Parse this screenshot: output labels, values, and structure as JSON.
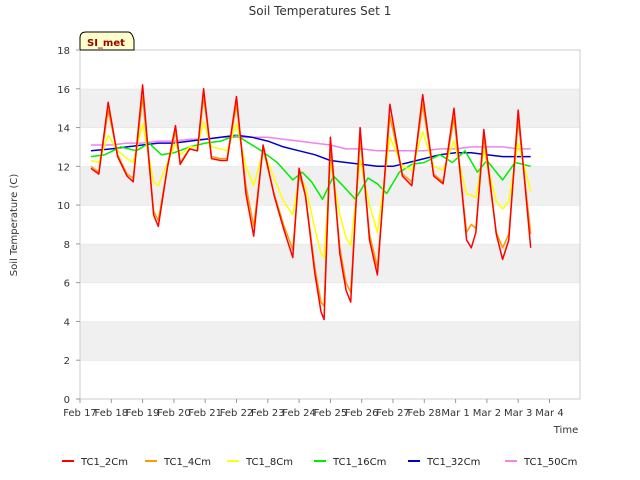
{
  "chart_data": {
    "type": "line",
    "title": "Soil Temperatures Set 1",
    "xlabel": "Time",
    "ylabel": "Soil Temperature (C)",
    "badge": "SI_met",
    "ylim": [
      0,
      18
    ],
    "yticks": [
      0,
      2,
      4,
      6,
      8,
      10,
      12,
      14,
      16,
      18
    ],
    "xlim": [
      0,
      16
    ],
    "xticks": [
      {
        "x": 0,
        "label": "Feb 17"
      },
      {
        "x": 1,
        "label": "Feb 18"
      },
      {
        "x": 2,
        "label": "Feb 19"
      },
      {
        "x": 3,
        "label": "Feb 20"
      },
      {
        "x": 4,
        "label": "Feb 21"
      },
      {
        "x": 5,
        "label": "Feb 22"
      },
      {
        "x": 6,
        "label": "Feb 23"
      },
      {
        "x": 7,
        "label": "Feb 24"
      },
      {
        "x": 8,
        "label": "Feb 25"
      },
      {
        "x": 9,
        "label": "Feb 26"
      },
      {
        "x": 10,
        "label": "Feb 27"
      },
      {
        "x": 11,
        "label": "Feb 28"
      },
      {
        "x": 12,
        "label": "Mar 1"
      },
      {
        "x": 13,
        "label": "Mar 2"
      },
      {
        "x": 14,
        "label": "Mar 3"
      },
      {
        "x": 15,
        "label": "Mar 4"
      }
    ],
    "grid": "horizontal bands",
    "legend_position": "bottom",
    "series": [
      {
        "name": "TC1_2Cm",
        "color": "#ff0000",
        "points": [
          [
            0.35,
            11.9
          ],
          [
            0.6,
            11.6
          ],
          [
            0.9,
            15.3
          ],
          [
            1.2,
            12.5
          ],
          [
            1.5,
            11.5
          ],
          [
            1.7,
            11.2
          ],
          [
            2.0,
            16.2
          ],
          [
            2.35,
            9.5
          ],
          [
            2.5,
            8.9
          ],
          [
            2.8,
            12.0
          ],
          [
            3.05,
            14.1
          ],
          [
            3.2,
            12.1
          ],
          [
            3.5,
            12.9
          ],
          [
            3.75,
            12.8
          ],
          [
            3.95,
            16.0
          ],
          [
            4.2,
            12.4
          ],
          [
            4.5,
            12.3
          ],
          [
            4.7,
            12.3
          ],
          [
            5.0,
            15.6
          ],
          [
            5.3,
            10.6
          ],
          [
            5.55,
            8.4
          ],
          [
            5.85,
            13.1
          ],
          [
            6.2,
            10.5
          ],
          [
            6.5,
            8.8
          ],
          [
            6.8,
            7.3
          ],
          [
            7.0,
            11.9
          ],
          [
            7.2,
            10.5
          ],
          [
            7.5,
            6.5
          ],
          [
            7.7,
            4.5
          ],
          [
            7.8,
            4.1
          ],
          [
            8.0,
            13.5
          ],
          [
            8.3,
            7.5
          ],
          [
            8.5,
            5.6
          ],
          [
            8.65,
            5.0
          ],
          [
            8.95,
            14.0
          ],
          [
            9.25,
            8.2
          ],
          [
            9.5,
            6.4
          ],
          [
            9.9,
            15.2
          ],
          [
            10.3,
            11.5
          ],
          [
            10.6,
            11.0
          ],
          [
            10.95,
            15.7
          ],
          [
            11.3,
            11.5
          ],
          [
            11.6,
            11.1
          ],
          [
            11.95,
            15.0
          ],
          [
            12.35,
            8.2
          ],
          [
            12.5,
            7.8
          ],
          [
            12.65,
            8.6
          ],
          [
            12.9,
            13.9
          ],
          [
            13.3,
            8.5
          ],
          [
            13.5,
            7.2
          ],
          [
            13.7,
            8.2
          ],
          [
            14.0,
            14.9
          ],
          [
            14.4,
            7.8
          ]
        ]
      },
      {
        "name": "TC1_4Cm",
        "color": "#ff9900",
        "points": [
          [
            0.35,
            12.0
          ],
          [
            0.6,
            11.7
          ],
          [
            0.9,
            14.9
          ],
          [
            1.2,
            12.6
          ],
          [
            1.5,
            11.6
          ],
          [
            1.7,
            11.4
          ],
          [
            2.0,
            15.6
          ],
          [
            2.35,
            9.7
          ],
          [
            2.5,
            9.2
          ],
          [
            2.8,
            12.0
          ],
          [
            3.05,
            13.8
          ],
          [
            3.2,
            12.2
          ],
          [
            3.5,
            12.9
          ],
          [
            3.75,
            12.8
          ],
          [
            3.95,
            15.6
          ],
          [
            4.2,
            12.5
          ],
          [
            4.5,
            12.4
          ],
          [
            4.7,
            12.4
          ],
          [
            5.0,
            15.2
          ],
          [
            5.3,
            11.0
          ],
          [
            5.55,
            8.9
          ],
          [
            5.85,
            12.9
          ],
          [
            6.2,
            10.6
          ],
          [
            6.5,
            9.0
          ],
          [
            6.8,
            7.7
          ],
          [
            7.0,
            11.6
          ],
          [
            7.2,
            10.5
          ],
          [
            7.5,
            6.8
          ],
          [
            7.7,
            5.0
          ],
          [
            7.8,
            4.8
          ],
          [
            8.0,
            13.0
          ],
          [
            8.3,
            7.8
          ],
          [
            8.5,
            6.0
          ],
          [
            8.65,
            5.5
          ],
          [
            8.95,
            13.5
          ],
          [
            9.25,
            8.5
          ],
          [
            9.5,
            6.8
          ],
          [
            9.9,
            14.6
          ],
          [
            10.3,
            11.6
          ],
          [
            10.6,
            11.2
          ],
          [
            10.95,
            15.2
          ],
          [
            11.3,
            11.6
          ],
          [
            11.6,
            11.2
          ],
          [
            11.95,
            14.5
          ],
          [
            12.35,
            8.6
          ],
          [
            12.5,
            9.0
          ],
          [
            12.65,
            8.8
          ],
          [
            12.9,
            13.5
          ],
          [
            13.3,
            8.6
          ],
          [
            13.5,
            7.8
          ],
          [
            13.7,
            8.5
          ],
          [
            14.0,
            14.4
          ],
          [
            14.4,
            8.5
          ]
        ]
      },
      {
        "name": "TC1_8Cm",
        "color": "#ffff00",
        "points": [
          [
            0.35,
            12.3
          ],
          [
            0.6,
            12.2
          ],
          [
            0.9,
            13.6
          ],
          [
            1.2,
            12.8
          ],
          [
            1.5,
            12.4
          ],
          [
            1.7,
            12.2
          ],
          [
            2.0,
            14.2
          ],
          [
            2.35,
            11.2
          ],
          [
            2.5,
            11.0
          ],
          [
            2.8,
            12.2
          ],
          [
            3.05,
            13.2
          ],
          [
            3.2,
            12.6
          ],
          [
            3.5,
            13.0
          ],
          [
            3.75,
            13.0
          ],
          [
            3.95,
            14.3
          ],
          [
            4.2,
            13.0
          ],
          [
            4.5,
            12.9
          ],
          [
            4.7,
            12.8
          ],
          [
            5.0,
            14.2
          ],
          [
            5.3,
            12.0
          ],
          [
            5.55,
            11.0
          ],
          [
            5.85,
            12.8
          ],
          [
            6.2,
            11.4
          ],
          [
            6.5,
            10.2
          ],
          [
            6.8,
            9.5
          ],
          [
            7.0,
            11.4
          ],
          [
            7.2,
            11.0
          ],
          [
            7.5,
            8.8
          ],
          [
            7.7,
            7.5
          ],
          [
            7.8,
            7.3
          ],
          [
            8.0,
            12.2
          ],
          [
            8.3,
            9.5
          ],
          [
            8.5,
            8.3
          ],
          [
            8.65,
            7.9
          ],
          [
            8.95,
            12.3
          ],
          [
            9.25,
            10.0
          ],
          [
            9.5,
            8.6
          ],
          [
            9.9,
            13.5
          ],
          [
            10.3,
            12.0
          ],
          [
            10.6,
            11.8
          ],
          [
            10.95,
            13.8
          ],
          [
            11.3,
            12.0
          ],
          [
            11.6,
            11.8
          ],
          [
            11.95,
            13.3
          ],
          [
            12.35,
            10.6
          ],
          [
            12.5,
            10.5
          ],
          [
            12.65,
            10.4
          ],
          [
            12.9,
            12.8
          ],
          [
            13.3,
            10.2
          ],
          [
            13.5,
            9.8
          ],
          [
            13.7,
            10.2
          ],
          [
            14.0,
            13.2
          ],
          [
            14.4,
            10.7
          ]
        ]
      },
      {
        "name": "TC1_16Cm",
        "color": "#00ee00",
        "points": [
          [
            0.35,
            12.5
          ],
          [
            0.8,
            12.6
          ],
          [
            1.3,
            13.0
          ],
          [
            1.8,
            12.8
          ],
          [
            2.2,
            13.2
          ],
          [
            2.6,
            12.6
          ],
          [
            3.0,
            12.7
          ],
          [
            3.5,
            13.0
          ],
          [
            4.0,
            13.2
          ],
          [
            4.5,
            13.3
          ],
          [
            5.0,
            13.6
          ],
          [
            5.4,
            13.2
          ],
          [
            5.8,
            12.8
          ],
          [
            6.3,
            12.2
          ],
          [
            6.8,
            11.3
          ],
          [
            7.1,
            11.7
          ],
          [
            7.4,
            11.2
          ],
          [
            7.75,
            10.3
          ],
          [
            8.1,
            11.5
          ],
          [
            8.4,
            11.0
          ],
          [
            8.8,
            10.3
          ],
          [
            9.2,
            11.4
          ],
          [
            9.5,
            11.1
          ],
          [
            9.8,
            10.6
          ],
          [
            10.2,
            11.7
          ],
          [
            10.6,
            12.1
          ],
          [
            11.0,
            12.2
          ],
          [
            11.5,
            12.6
          ],
          [
            11.9,
            12.2
          ],
          [
            12.3,
            12.8
          ],
          [
            12.7,
            11.7
          ],
          [
            13.0,
            12.3
          ],
          [
            13.5,
            11.3
          ],
          [
            13.9,
            12.2
          ],
          [
            14.4,
            12.0
          ]
        ]
      },
      {
        "name": "TC1_32Cm",
        "color": "#0000cc",
        "points": [
          [
            0.35,
            12.8
          ],
          [
            1.0,
            12.9
          ],
          [
            1.5,
            13.0
          ],
          [
            2.0,
            13.1
          ],
          [
            2.5,
            13.2
          ],
          [
            3.0,
            13.2
          ],
          [
            3.5,
            13.3
          ],
          [
            4.0,
            13.4
          ],
          [
            4.5,
            13.5
          ],
          [
            5.0,
            13.6
          ],
          [
            5.5,
            13.5
          ],
          [
            6.0,
            13.3
          ],
          [
            6.5,
            13.0
          ],
          [
            7.0,
            12.8
          ],
          [
            7.5,
            12.6
          ],
          [
            8.0,
            12.3
          ],
          [
            8.5,
            12.2
          ],
          [
            9.0,
            12.1
          ],
          [
            9.5,
            12.0
          ],
          [
            10.0,
            12.0
          ],
          [
            10.5,
            12.2
          ],
          [
            11.0,
            12.4
          ],
          [
            11.5,
            12.6
          ],
          [
            12.0,
            12.7
          ],
          [
            12.5,
            12.7
          ],
          [
            13.0,
            12.6
          ],
          [
            13.5,
            12.5
          ],
          [
            14.0,
            12.5
          ],
          [
            14.4,
            12.5
          ]
        ]
      },
      {
        "name": "TC1_50Cm",
        "color": "#ee82ee",
        "points": [
          [
            0.35,
            13.1
          ],
          [
            1.0,
            13.1
          ],
          [
            1.5,
            13.2
          ],
          [
            2.0,
            13.2
          ],
          [
            2.5,
            13.3
          ],
          [
            3.0,
            13.3
          ],
          [
            3.5,
            13.4
          ],
          [
            4.0,
            13.4
          ],
          [
            4.5,
            13.5
          ],
          [
            5.0,
            13.5
          ],
          [
            5.5,
            13.5
          ],
          [
            6.0,
            13.5
          ],
          [
            6.5,
            13.4
          ],
          [
            7.0,
            13.3
          ],
          [
            7.5,
            13.2
          ],
          [
            8.0,
            13.1
          ],
          [
            8.5,
            12.9
          ],
          [
            9.0,
            12.9
          ],
          [
            9.5,
            12.8
          ],
          [
            10.0,
            12.8
          ],
          [
            10.5,
            12.8
          ],
          [
            11.0,
            12.8
          ],
          [
            11.5,
            12.9
          ],
          [
            12.0,
            12.9
          ],
          [
            12.5,
            13.0
          ],
          [
            13.0,
            13.0
          ],
          [
            13.5,
            13.0
          ],
          [
            14.0,
            12.9
          ],
          [
            14.4,
            12.9
          ]
        ]
      }
    ]
  }
}
